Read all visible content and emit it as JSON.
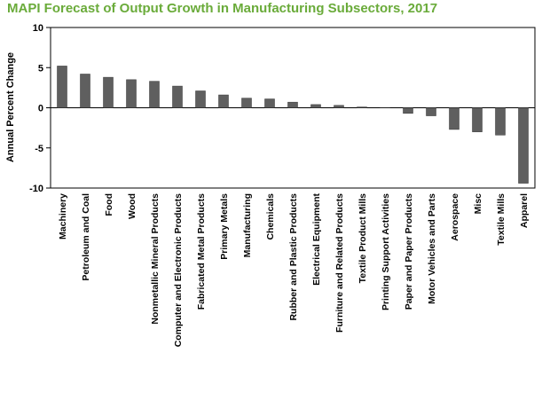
{
  "colors": {
    "title": "#6aab3a",
    "bar": "#5f5f5f",
    "bar_stroke": "#333333",
    "axis": "#000000"
  },
  "chart_data": {
    "type": "bar",
    "title": "MAPI Forecast of Output Growth in Manufacturing Subsectors, 2017",
    "xlabel": "",
    "ylabel": "Annual  Percent  Change",
    "ylim": [
      -10,
      10
    ],
    "yticks": [
      -10,
      -5,
      0,
      5,
      10
    ],
    "ytick_labels": [
      "-10",
      "-5",
      "0",
      "5",
      "10"
    ],
    "grid": false,
    "categories": [
      "Machinery",
      "Petroleum and Coal",
      "Food",
      "Wood",
      "Nonmetallic Mineral Products",
      "Computer and Electronic Products",
      "Fabricated Metal Products",
      "Primary Metals",
      "Manufacturing",
      "Chemicals",
      "Rubber and Plastic Products",
      "Electrical Equipment",
      "Furniture and Related Products",
      "Textile Product Mills",
      "Printing Support Activities",
      "Paper and Paper Products",
      "Motor Vehicles and Parts",
      "Aerospace",
      "Misc",
      "Textile Mills",
      "Apparel"
    ],
    "values": [
      5.2,
      4.2,
      3.8,
      3.5,
      3.3,
      2.7,
      2.1,
      1.6,
      1.2,
      1.1,
      0.7,
      0.4,
      0.3,
      0.1,
      0.0,
      -0.7,
      -1.0,
      -2.7,
      -3.0,
      -3.4,
      -9.4
    ]
  }
}
